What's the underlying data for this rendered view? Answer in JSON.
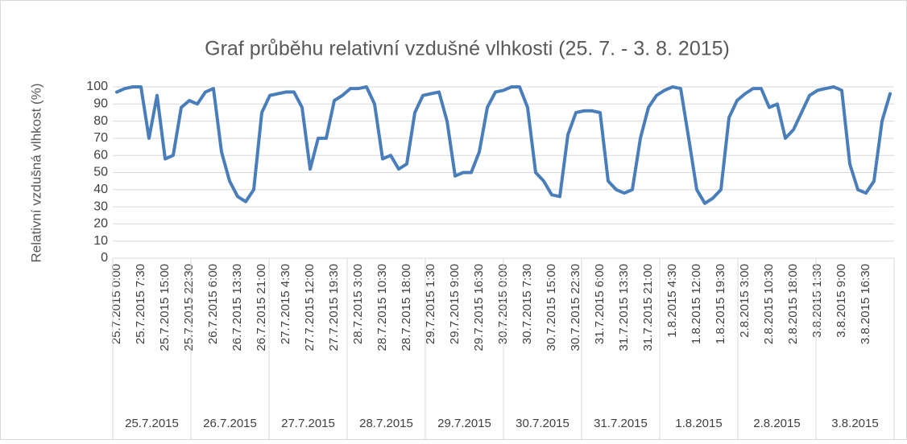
{
  "chart_data": {
    "type": "line",
    "title": "Graf průběhu relativní vzdušné vlhkosti (25. 7. - 3. 8. 2015)",
    "y_label": "Relativní vzdušná vlhkost (%)",
    "categories": [
      "25.7.2015 0:00",
      null,
      null,
      "25.7.2015 7:30",
      null,
      null,
      "25.7.2015 15:00",
      null,
      null,
      "25.7.2015 22:30",
      null,
      null,
      "26.7.2015 6:00",
      null,
      null,
      "26.7.2015 13:30",
      null,
      null,
      "26.7.2015 21:00",
      null,
      null,
      "27.7.2015 4:30",
      null,
      null,
      "27.7.2015 12:00",
      null,
      null,
      "27.7.2015 19:30",
      null,
      null,
      "28.7.2015 3:00",
      null,
      null,
      "28.7.2015 10:30",
      null,
      null,
      "28.7.2015 18:00",
      null,
      null,
      "29.7.2015 1:30",
      null,
      null,
      "29.7.2015 9:00",
      null,
      null,
      "29.7.2015 16:30",
      null,
      null,
      "30.7.2015 0:00",
      null,
      null,
      "30.7.2015 7:30",
      null,
      null,
      "30.7.2015 15:00",
      null,
      null,
      "30.7.2015 22:30",
      null,
      null,
      "31.7.2015 6:00",
      null,
      null,
      "31.7.2015 13:30",
      null,
      null,
      "31.7.2015 21:00",
      null,
      null,
      "1.8.2015 4:30",
      null,
      null,
      "1.8.2015 12:00",
      null,
      null,
      "1.8.2015 19:30",
      null,
      null,
      "2.8.2015 3:00",
      null,
      null,
      "2.8.2015 10:30",
      null,
      null,
      "2.8.2015 18:00",
      null,
      null,
      "3.8.2015 1:30",
      null,
      null,
      "3.8.2015 9:00",
      null,
      null,
      "3.8.2015 16:30",
      null,
      null,
      null
    ],
    "groups": [
      "25.7.2015",
      "26.7.2015",
      "27.7.2015",
      "28.7.2015",
      "29.7.2015",
      "30.7.2015",
      "31.7.2015",
      "1.8.2015",
      "2.8.2015",
      "3.8.2015"
    ],
    "color": "#4a7ebb",
    "values": [
      97,
      99,
      100,
      100,
      70,
      95,
      58,
      60,
      88,
      92,
      90,
      97,
      99,
      62,
      45,
      36,
      33,
      40,
      85,
      95,
      96,
      97,
      97,
      88,
      52,
      70,
      70,
      92,
      95,
      99,
      99,
      100,
      90,
      58,
      60,
      52,
      55,
      85,
      95,
      96,
      97,
      80,
      48,
      50,
      50,
      62,
      88,
      97,
      98,
      100,
      100,
      88,
      50,
      45,
      37,
      36,
      72,
      85,
      86,
      86,
      85,
      45,
      40,
      38,
      40,
      70,
      88,
      95,
      98,
      100,
      99,
      70,
      40,
      32,
      35,
      40,
      82,
      92,
      96,
      99,
      99,
      88,
      90,
      70,
      75,
      85,
      95,
      98,
      99,
      100,
      98,
      55,
      40,
      38,
      45,
      80,
      96
    ],
    "ylim": [
      0,
      100
    ],
    "yticks": [
      0,
      10,
      20,
      30,
      40,
      50,
      60,
      70,
      80,
      90,
      100
    ],
    "grid": true
  }
}
